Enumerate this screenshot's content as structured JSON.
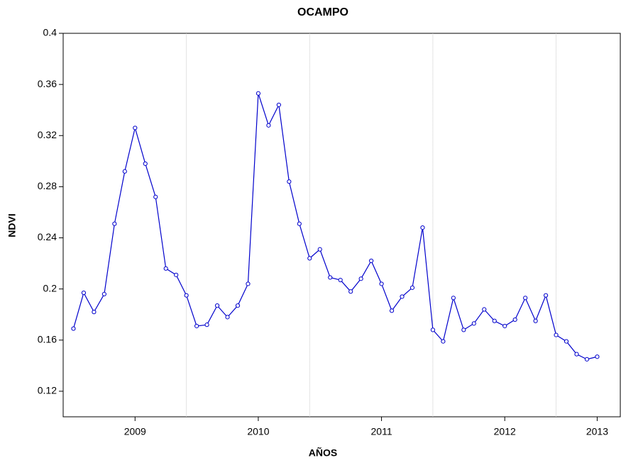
{
  "chart_data": {
    "type": "line",
    "title": "OCAMPO",
    "x_label": "AÑOS",
    "y_label": "NDVI",
    "categories": [
      null,
      null,
      null,
      null,
      null,
      null,
      "2009",
      null,
      null,
      null,
      null,
      null,
      null,
      null,
      null,
      null,
      null,
      null,
      "2010",
      null,
      null,
      null,
      null,
      null,
      null,
      null,
      null,
      null,
      null,
      null,
      "2011",
      null,
      null,
      null,
      null,
      null,
      null,
      null,
      null,
      null,
      null,
      null,
      "2012",
      null,
      null,
      null,
      null,
      null,
      null,
      null,
      null,
      "2013"
    ],
    "series": [
      {
        "name": "NDVI",
        "color": "#0000cc",
        "values": [
          0.169,
          0.197,
          0.182,
          0.196,
          0.251,
          0.292,
          0.326,
          0.298,
          0.272,
          0.216,
          0.211,
          0.195,
          0.171,
          0.172,
          0.187,
          0.178,
          0.187,
          0.204,
          0.353,
          0.328,
          0.344,
          0.284,
          0.251,
          0.224,
          0.231,
          0.209,
          0.207,
          0.198,
          0.208,
          0.222,
          0.204,
          0.183,
          0.194,
          0.201,
          0.248,
          0.168,
          0.159,
          0.193,
          0.168,
          0.173,
          0.184,
          0.175,
          0.171,
          0.176,
          0.193,
          0.175,
          0.195,
          0.164,
          0.159,
          0.149,
          0.145,
          0.147
        ]
      }
    ],
    "ylim": [
      0.1,
      0.4
    ],
    "yticks": [
      0.12,
      0.16,
      0.2,
      0.24,
      0.28,
      0.32,
      0.36,
      0.4
    ],
    "xgrid_categories": [
      11,
      23,
      35,
      47
    ]
  }
}
